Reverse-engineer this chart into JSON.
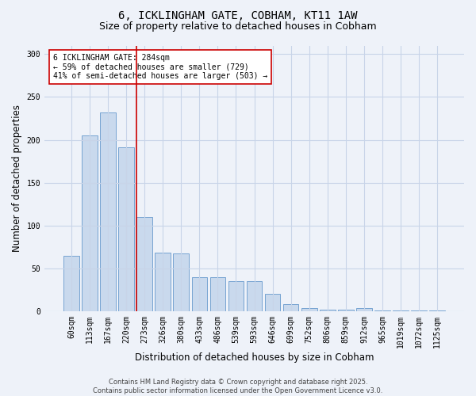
{
  "title1": "6, ICKLINGHAM GATE, COBHAM, KT11 1AW",
  "title2": "Size of property relative to detached houses in Cobham",
  "xlabel": "Distribution of detached houses by size in Cobham",
  "ylabel": "Number of detached properties",
  "categories": [
    "60sqm",
    "113sqm",
    "167sqm",
    "220sqm",
    "273sqm",
    "326sqm",
    "380sqm",
    "433sqm",
    "486sqm",
    "539sqm",
    "593sqm",
    "646sqm",
    "699sqm",
    "752sqm",
    "806sqm",
    "859sqm",
    "912sqm",
    "965sqm",
    "1019sqm",
    "1072sqm",
    "1125sqm"
  ],
  "values": [
    65,
    205,
    232,
    191,
    110,
    68,
    67,
    40,
    40,
    35,
    35,
    20,
    8,
    4,
    2,
    2,
    4,
    1,
    1,
    0.5,
    1
  ],
  "bar_color": "#c9d9ed",
  "bar_edge_color": "#6699cc",
  "grid_color": "#c8d4e8",
  "bg_color": "#eef2f9",
  "annotation_text": "6 ICKLINGHAM GATE: 284sqm\n← 59% of detached houses are smaller (729)\n41% of semi-detached houses are larger (503) →",
  "vline_color": "#cc0000",
  "annotation_box_color": "#ffffff",
  "annotation_box_edgecolor": "#cc0000",
  "footer_text": "Contains HM Land Registry data © Crown copyright and database right 2025.\nContains public sector information licensed under the Open Government Licence v3.0.",
  "ylim": [
    0,
    310
  ],
  "title1_fontsize": 10,
  "title2_fontsize": 9,
  "tick_fontsize": 7,
  "label_fontsize": 8.5,
  "footer_fontsize": 6
}
